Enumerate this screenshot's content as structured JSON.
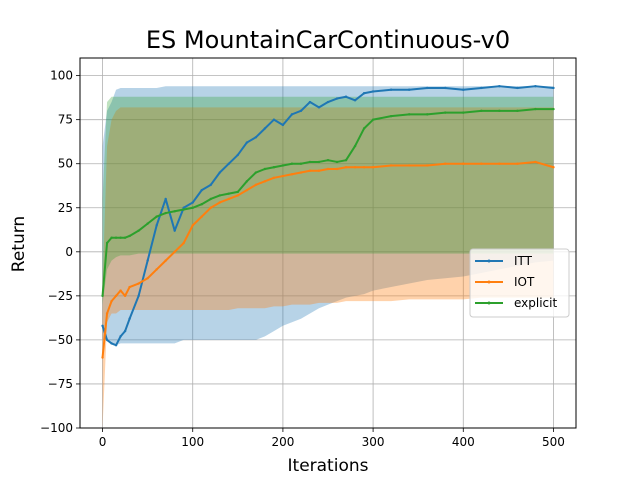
{
  "chart_data": {
    "type": "line",
    "title": "ES MountainCarContinuous-v0",
    "xlabel": "Iterations",
    "ylabel": "Return",
    "xlim": [
      -25,
      525
    ],
    "ylim": [
      -100,
      110
    ],
    "xticks": [
      0,
      100,
      200,
      300,
      400,
      500
    ],
    "yticks": [
      -100,
      -75,
      -50,
      -25,
      0,
      25,
      50,
      75,
      100
    ],
    "grid": true,
    "legend_position": "center-right",
    "series": [
      {
        "name": "ITT",
        "color": "#1f77b4",
        "x": [
          0,
          5,
          10,
          15,
          20,
          25,
          30,
          40,
          50,
          60,
          70,
          80,
          90,
          100,
          110,
          120,
          130,
          140,
          150,
          160,
          170,
          180,
          190,
          200,
          210,
          220,
          230,
          240,
          250,
          260,
          270,
          280,
          290,
          300,
          320,
          340,
          360,
          380,
          400,
          420,
          440,
          460,
          480,
          500
        ],
        "y": [
          -42,
          -50,
          -52,
          -53,
          -48,
          -45,
          -38,
          -25,
          -5,
          15,
          30,
          12,
          25,
          28,
          35,
          38,
          45,
          50,
          55,
          62,
          65,
          70,
          75,
          72,
          78,
          80,
          85,
          82,
          85,
          87,
          88,
          86,
          90,
          91,
          92,
          92,
          93,
          93,
          92,
          93,
          94,
          93,
          94,
          93
        ],
        "band_low": [
          -50,
          -50,
          -52,
          -53,
          -52,
          -52,
          -52,
          -52,
          -52,
          -52,
          -52,
          -52,
          -50,
          -50,
          -50,
          -50,
          -50,
          -50,
          -50,
          -50,
          -50,
          -48,
          -45,
          -42,
          -40,
          -38,
          -35,
          -32,
          -30,
          -28,
          -26,
          -25,
          -24,
          -22,
          -20,
          -18,
          -16,
          -15,
          -14,
          -12,
          -10,
          -8,
          -6,
          -5
        ],
        "band_high": [
          60,
          80,
          85,
          92,
          93,
          93,
          93,
          93,
          93,
          93,
          94,
          94,
          94,
          94,
          94,
          94,
          94,
          94,
          94,
          94,
          94,
          94,
          94,
          94,
          94,
          94,
          94,
          94,
          94,
          94,
          94,
          94,
          94,
          94,
          94,
          94,
          94,
          94,
          94,
          94,
          94,
          94,
          94,
          94
        ]
      },
      {
        "name": "IOT",
        "color": "#ff7f0e",
        "x": [
          0,
          5,
          10,
          15,
          20,
          25,
          30,
          40,
          50,
          60,
          70,
          80,
          90,
          100,
          110,
          120,
          130,
          140,
          150,
          160,
          170,
          180,
          190,
          200,
          210,
          220,
          230,
          240,
          250,
          260,
          270,
          280,
          290,
          300,
          320,
          340,
          360,
          380,
          400,
          420,
          440,
          460,
          480,
          500
        ],
        "y": [
          -60,
          -35,
          -28,
          -25,
          -22,
          -25,
          -20,
          -18,
          -15,
          -10,
          -5,
          0,
          5,
          15,
          20,
          25,
          28,
          30,
          32,
          35,
          38,
          40,
          42,
          43,
          44,
          45,
          46,
          46,
          47,
          47,
          48,
          48,
          48,
          48,
          49,
          49,
          49,
          50,
          50,
          50,
          50,
          50,
          51,
          48
        ],
        "band_low": [
          -100,
          -40,
          -35,
          -35,
          -33,
          -33,
          -33,
          -33,
          -33,
          -33,
          -33,
          -33,
          -33,
          -33,
          -33,
          -33,
          -33,
          -33,
          -32,
          -32,
          -32,
          -32,
          -31,
          -31,
          -30,
          -30,
          -30,
          -29,
          -29,
          -29,
          -28,
          -28,
          -28,
          -28,
          -28,
          -27,
          -27,
          -27,
          -27,
          -26,
          -26,
          -26,
          -26,
          -26
        ],
        "band_high": [
          -20,
          60,
          75,
          80,
          82,
          82,
          82,
          82,
          82,
          82,
          82,
          82,
          82,
          82,
          82,
          82,
          82,
          82,
          82,
          82,
          82,
          82,
          82,
          82,
          82,
          82,
          82,
          82,
          82,
          82,
          82,
          82,
          82,
          82,
          82,
          82,
          82,
          82,
          82,
          82,
          82,
          82,
          82,
          82
        ]
      },
      {
        "name": "explicit",
        "color": "#2ca02c",
        "x": [
          0,
          5,
          10,
          15,
          20,
          25,
          30,
          40,
          50,
          60,
          70,
          80,
          90,
          100,
          110,
          120,
          130,
          140,
          150,
          160,
          170,
          180,
          190,
          200,
          210,
          220,
          230,
          240,
          250,
          260,
          270,
          280,
          290,
          300,
          320,
          340,
          360,
          380,
          400,
          420,
          440,
          460,
          480,
          500
        ],
        "y": [
          -25,
          5,
          8,
          8,
          8,
          8,
          9,
          12,
          16,
          20,
          22,
          23,
          24,
          25,
          27,
          30,
          32,
          33,
          34,
          40,
          45,
          47,
          48,
          49,
          50,
          50,
          51,
          51,
          52,
          51,
          52,
          60,
          70,
          75,
          77,
          78,
          78,
          79,
          79,
          80,
          80,
          80,
          81,
          81
        ],
        "band_low": [
          -30,
          -10,
          -5,
          -3,
          -2,
          -2,
          -2,
          -1,
          -1,
          -1,
          -1,
          -1,
          -1,
          -1,
          -1,
          -1,
          -1,
          -1,
          -1,
          -1,
          -1,
          -1,
          -1,
          -1,
          -1,
          -1,
          -1,
          -1,
          -1,
          -1,
          -1,
          -1,
          -1,
          -1,
          -1,
          -1,
          -1,
          -1,
          -1,
          -1,
          -1,
          -1,
          -1,
          -1
        ],
        "band_high": [
          30,
          85,
          88,
          88,
          88,
          88,
          88,
          88,
          88,
          88,
          88,
          88,
          88,
          88,
          88,
          88,
          88,
          88,
          88,
          88,
          88,
          88,
          88,
          88,
          88,
          88,
          88,
          88,
          88,
          88,
          88,
          88,
          88,
          88,
          88,
          88,
          88,
          88,
          88,
          88,
          88,
          88,
          88,
          88
        ]
      }
    ]
  }
}
